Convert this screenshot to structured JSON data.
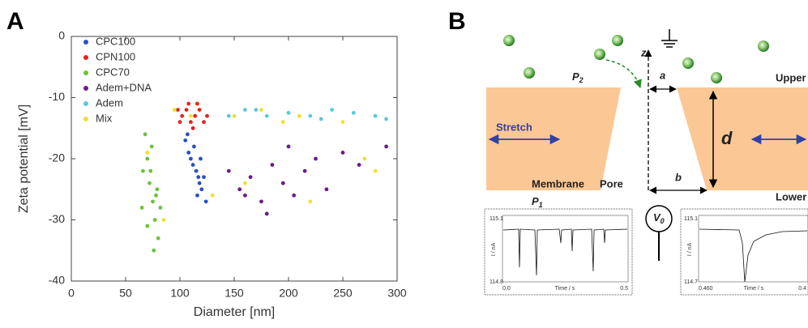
{
  "figure": {
    "panel_a": "A",
    "panel_b": "B"
  },
  "chart_data": {
    "type": "scatter",
    "xlabel": "Diameter [nm]",
    "ylabel": "Zeta potential [mV]",
    "xlim": [
      0,
      300
    ],
    "ylim": [
      -40,
      0
    ],
    "xticks": [
      0,
      50,
      100,
      150,
      200,
      250,
      300
    ],
    "yticks": [
      0,
      -10,
      -20,
      -30,
      -40
    ],
    "series": [
      {
        "name": "CPC100",
        "color": "#2b4fc4",
        "x": [
          105,
          108,
          112,
          115,
          118,
          120,
          110,
          107,
          122,
          116,
          113,
          119,
          124,
          117
        ],
        "values": [
          -17,
          -19,
          -21,
          -22,
          -24,
          -25,
          -20,
          -16,
          -23,
          -26,
          -18,
          -20,
          -27,
          -23
        ]
      },
      {
        "name": "CPN100",
        "color": "#e8201a",
        "x": [
          98,
          102,
          106,
          110,
          114,
          118,
          122,
          108,
          112,
          100,
          116,
          125
        ],
        "values": [
          -12,
          -13,
          -12,
          -14,
          -13,
          -12,
          -14,
          -11,
          -15,
          -14,
          -11,
          -13
        ]
      },
      {
        "name": "CPC70",
        "color": "#6cc23a",
        "x": [
          68,
          70,
          72,
          75,
          77,
          80,
          66,
          74,
          78,
          82,
          70,
          76,
          73,
          79,
          65
        ],
        "values": [
          -16,
          -20,
          -24,
          -27,
          -30,
          -33,
          -22,
          -18,
          -26,
          -28,
          -31,
          -35,
          -22,
          -25,
          -28
        ]
      },
      {
        "name": "Adem+DNA",
        "color": "#6a1a8a",
        "x": [
          145,
          155,
          165,
          175,
          185,
          195,
          205,
          215,
          225,
          235,
          250,
          265,
          180,
          200,
          160,
          290
        ],
        "values": [
          -22,
          -25,
          -23,
          -27,
          -21,
          -24,
          -26,
          -22,
          -20,
          -25,
          -19,
          -21,
          -29,
          -18,
          -26,
          -18
        ]
      },
      {
        "name": "Adem",
        "color": "#5bc8e0",
        "x": [
          145,
          160,
          180,
          200,
          220,
          240,
          260,
          280,
          290,
          170,
          230
        ],
        "values": [
          -13,
          -12,
          -13,
          -12.5,
          -13,
          -12,
          -12.5,
          -13,
          -13.5,
          -12,
          -13.5
        ]
      },
      {
        "name": "Mix",
        "color": "#f0e030",
        "x": [
          70,
          95,
          150,
          175,
          195,
          210,
          250,
          270,
          160,
          220,
          85,
          110,
          280,
          130
        ],
        "values": [
          -19,
          -12,
          -13,
          -12,
          -14,
          -13,
          -14,
          -20,
          -24,
          -27,
          -30,
          -13,
          -22,
          -26
        ]
      }
    ]
  },
  "diagram": {
    "z": "z",
    "a": "a",
    "b": "b",
    "d": "d",
    "upper": "Upper",
    "lower": "Lower",
    "stretch": "Stretch",
    "membrane": "Membrane",
    "pore": "Pore",
    "p2": {
      "main": "P",
      "sub": "2"
    },
    "p1": {
      "main": "P",
      "sub": "1"
    },
    "v0": {
      "main": "V",
      "sub": "0"
    },
    "insets": [
      {
        "top": "115.1",
        "bottom": "114.8",
        "ylabel": "I / nA",
        "x_start": "0.0",
        "xlabel": "Time / s",
        "x_end": "0.5"
      },
      {
        "top": "115.1",
        "bottom": "114.7",
        "ylabel": "I / nA",
        "x_start": "0.460",
        "xlabel": "Time / s",
        "x_end": "0.4"
      }
    ]
  }
}
